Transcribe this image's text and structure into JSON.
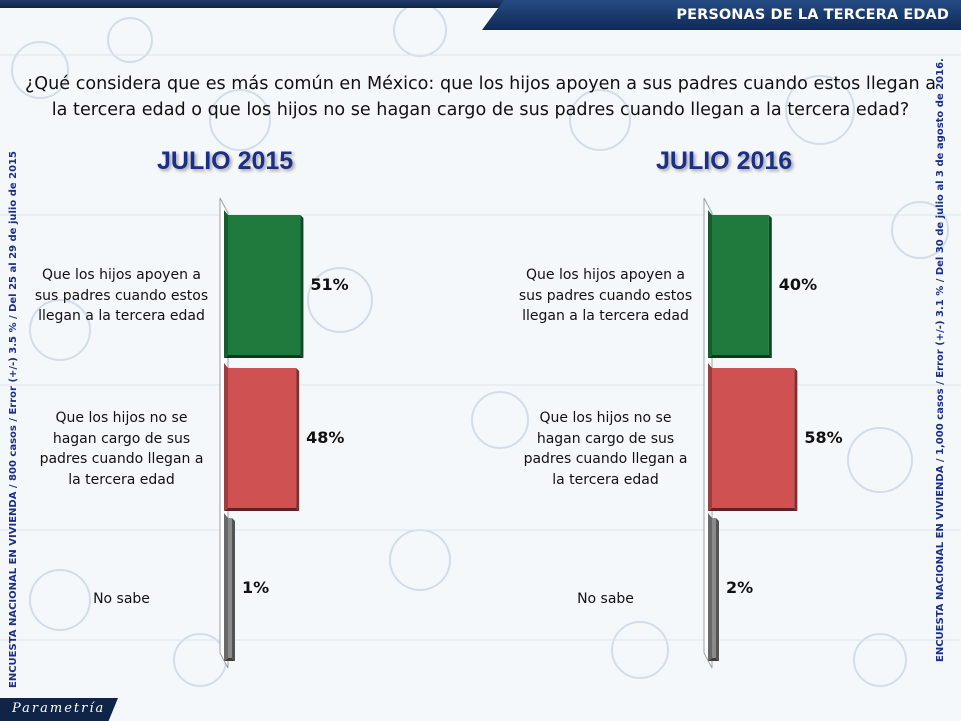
{
  "header": {
    "title": "PERSONAS DE LA TERCERA EDAD"
  },
  "question": {
    "line1": "¿Qué considera que es más común en México: que los hijos apoyen a sus padres cuando estos llegan a",
    "line2": "la tercera edad o que los hijos no se hagan cargo de sus padres cuando llegan a la tercera edad?"
  },
  "side_notes": {
    "left": "ENCUESTA NACIONAL EN VIVIENDA / 800 casos / Error (+/-) 3.5 % / Del 25 al 29 de julio de 2015",
    "right": "ENCUESTA NACIONAL EN VIVIENDA / 1,000 casos / Error (+/-) 3.1 % / Del 30 de julio al 3 de agosto de 2016."
  },
  "brand": {
    "watermark": "Parametría",
    "logo": "Parametría"
  },
  "colors": {
    "green": "#1e7a3c",
    "red": "#d05152",
    "gray": "#8a8a8a",
    "title": "#1b2f86"
  },
  "chart_data": [
    {
      "type": "bar",
      "orientation": "horizontal",
      "title": "JULIO 2015",
      "categories": [
        [
          "Que los hijos apoyen a",
          "sus padres cuando estos",
          "llegan a la tercera edad"
        ],
        [
          "Que los hijos no se",
          "hagan cargo de sus",
          "padres cuando llegan a",
          "la tercera edad"
        ],
        [
          "No sabe"
        ]
      ],
      "values": [
        51,
        48,
        1
      ],
      "value_labels": [
        "51%",
        "48%",
        "1%"
      ],
      "colors": [
        "#1e7a3c",
        "#d05152",
        "#8a8a8a"
      ],
      "xlim": [
        0,
        100
      ]
    },
    {
      "type": "bar",
      "orientation": "horizontal",
      "title": "JULIO 2016",
      "categories": [
        [
          "Que los hijos apoyen a",
          "sus padres cuando estos",
          "llegan a la tercera edad"
        ],
        [
          "Que los hijos no se",
          "hagan cargo de sus",
          "padres cuando llegan a",
          "la tercera edad"
        ],
        [
          "No sabe"
        ]
      ],
      "values": [
        40,
        58,
        2
      ],
      "value_labels": [
        "40%",
        "58%",
        "2%"
      ],
      "colors": [
        "#1e7a3c",
        "#d05152",
        "#8a8a8a"
      ],
      "xlim": [
        0,
        100
      ]
    }
  ]
}
